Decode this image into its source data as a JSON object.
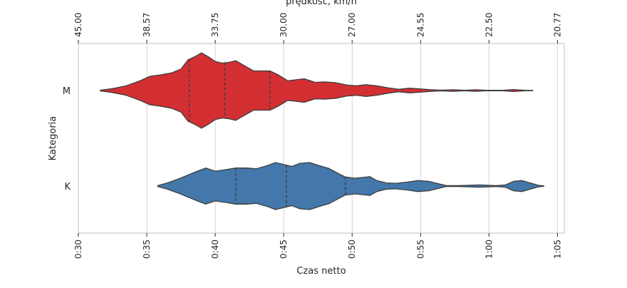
{
  "chart_data": {
    "type": "violin",
    "orientation": "horizontal",
    "xlabel": "Czas netto",
    "ylabel": "Kategoria",
    "top_xlabel": "prędkość, km/h",
    "xlim": [
      30,
      65.5
    ],
    "x_unit": "minutes",
    "xticks": [
      30,
      35,
      40,
      45,
      50,
      55,
      60,
      65
    ],
    "xtick_labels": [
      "0:30",
      "0:35",
      "0:40",
      "0:45",
      "0:50",
      "0:55",
      "1:00",
      "1:05"
    ],
    "top_xticks": [
      30,
      35,
      40,
      45,
      50,
      55,
      60,
      65
    ],
    "top_xtick_labels": [
      "45.00",
      "38.57",
      "33.75",
      "30.00",
      "27.00",
      "24.55",
      "22.50",
      "20.77"
    ],
    "grid": "vertical",
    "categories": [
      "M",
      "K"
    ],
    "series": [
      {
        "name": "M",
        "color": "#d32f33",
        "quartiles": [
          38.1,
          40.7,
          44.0
        ],
        "density": [
          [
            31.6,
            0.01
          ],
          [
            32.5,
            0.05
          ],
          [
            33.5,
            0.12
          ],
          [
            34.5,
            0.25
          ],
          [
            35.2,
            0.36
          ],
          [
            36,
            0.4
          ],
          [
            36.8,
            0.45
          ],
          [
            37.5,
            0.55
          ],
          [
            38,
            0.78
          ],
          [
            38.6,
            0.88
          ],
          [
            39.0,
            0.96
          ],
          [
            39.5,
            0.86
          ],
          [
            40,
            0.74
          ],
          [
            40.5,
            0.7
          ],
          [
            41,
            0.72
          ],
          [
            41.5,
            0.76
          ],
          [
            42.2,
            0.62
          ],
          [
            42.8,
            0.5
          ],
          [
            43.4,
            0.5
          ],
          [
            44,
            0.5
          ],
          [
            44.6,
            0.4
          ],
          [
            45.3,
            0.25
          ],
          [
            45.8,
            0.27
          ],
          [
            46.5,
            0.3
          ],
          [
            47.3,
            0.21
          ],
          [
            48,
            0.22
          ],
          [
            48.8,
            0.2
          ],
          [
            49.6,
            0.14
          ],
          [
            50.3,
            0.12
          ],
          [
            51,
            0.15
          ],
          [
            51.8,
            0.12
          ],
          [
            52.6,
            0.07
          ],
          [
            53.4,
            0.03
          ],
          [
            54.2,
            0.06
          ],
          [
            55,
            0.04
          ],
          [
            55.8,
            0.02
          ],
          [
            56.5,
            0.01
          ],
          [
            57.4,
            0.02
          ],
          [
            58.2,
            0.005
          ],
          [
            59,
            0.02
          ],
          [
            59.8,
            0.005
          ],
          [
            61,
            0.005
          ],
          [
            61.8,
            0.025
          ],
          [
            62.6,
            0.005
          ],
          [
            63.2,
            0.003
          ]
        ]
      },
      {
        "name": "K",
        "color": "#4477aa",
        "quartiles": [
          41.5,
          45.2,
          49.5
        ],
        "density": [
          [
            35.8,
            0.01
          ],
          [
            36.5,
            0.08
          ],
          [
            37.3,
            0.18
          ],
          [
            38.0,
            0.28
          ],
          [
            38.7,
            0.38
          ],
          [
            39.3,
            0.46
          ],
          [
            40,
            0.38
          ],
          [
            40.8,
            0.42
          ],
          [
            41.5,
            0.46
          ],
          [
            42.3,
            0.46
          ],
          [
            43,
            0.44
          ],
          [
            43.8,
            0.52
          ],
          [
            44.4,
            0.6
          ],
          [
            45,
            0.55
          ],
          [
            45.6,
            0.5
          ],
          [
            46.2,
            0.58
          ],
          [
            46.9,
            0.6
          ],
          [
            47.6,
            0.52
          ],
          [
            48.3,
            0.45
          ],
          [
            49,
            0.32
          ],
          [
            49.5,
            0.23
          ],
          [
            50.2,
            0.2
          ],
          [
            50.8,
            0.22
          ],
          [
            51.3,
            0.24
          ],
          [
            51.8,
            0.14
          ],
          [
            52.5,
            0.08
          ],
          [
            53.2,
            0.07
          ],
          [
            54,
            0.1
          ],
          [
            54.8,
            0.14
          ],
          [
            55.6,
            0.12
          ],
          [
            56.3,
            0.06
          ],
          [
            56.9,
            0.01
          ],
          [
            57.7,
            0.01
          ],
          [
            58.5,
            0.02
          ],
          [
            59.3,
            0.03
          ],
          [
            60.0,
            0.02
          ],
          [
            60.5,
            0.01
          ],
          [
            61.2,
            0.03
          ],
          [
            61.8,
            0.12
          ],
          [
            62.4,
            0.14
          ],
          [
            63,
            0.08
          ],
          [
            63.6,
            0.02
          ],
          [
            64,
            0.005
          ]
        ]
      }
    ]
  }
}
